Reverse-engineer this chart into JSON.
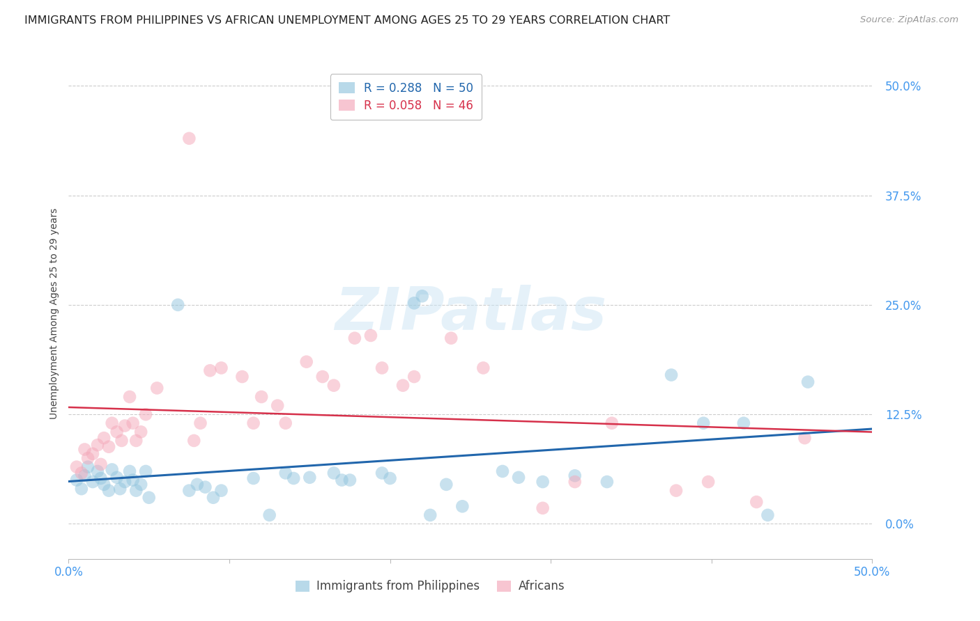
{
  "title": "IMMIGRANTS FROM PHILIPPINES VS AFRICAN UNEMPLOYMENT AMONG AGES 25 TO 29 YEARS CORRELATION CHART",
  "source": "Source: ZipAtlas.com",
  "ylabel": "Unemployment Among Ages 25 to 29 years",
  "ytick_labels": [
    "0.0%",
    "12.5%",
    "25.0%",
    "37.5%",
    "50.0%"
  ],
  "ytick_values": [
    0.0,
    0.125,
    0.25,
    0.375,
    0.5
  ],
  "xlim": [
    0.0,
    0.5
  ],
  "ylim": [
    -0.04,
    0.52
  ],
  "watermark": "ZIPatlas",
  "legend_1_label": "Immigrants from Philippines",
  "legend_2_label": "Africans",
  "r1": "0.288",
  "n1": "50",
  "r2": "0.058",
  "n2": "46",
  "color_blue": "#92c5de",
  "color_pink": "#f4a7b9",
  "color_blue_line": "#2166ac",
  "color_pink_line": "#d6304a",
  "scatter_blue": [
    [
      0.005,
      0.05
    ],
    [
      0.008,
      0.04
    ],
    [
      0.01,
      0.055
    ],
    [
      0.012,
      0.065
    ],
    [
      0.015,
      0.048
    ],
    [
      0.018,
      0.06
    ],
    [
      0.02,
      0.052
    ],
    [
      0.022,
      0.045
    ],
    [
      0.025,
      0.038
    ],
    [
      0.027,
      0.062
    ],
    [
      0.03,
      0.053
    ],
    [
      0.032,
      0.04
    ],
    [
      0.035,
      0.048
    ],
    [
      0.038,
      0.06
    ],
    [
      0.04,
      0.05
    ],
    [
      0.042,
      0.038
    ],
    [
      0.045,
      0.045
    ],
    [
      0.048,
      0.06
    ],
    [
      0.05,
      0.03
    ],
    [
      0.068,
      0.25
    ],
    [
      0.075,
      0.038
    ],
    [
      0.08,
      0.045
    ],
    [
      0.085,
      0.042
    ],
    [
      0.09,
      0.03
    ],
    [
      0.095,
      0.038
    ],
    [
      0.115,
      0.052
    ],
    [
      0.125,
      0.01
    ],
    [
      0.135,
      0.058
    ],
    [
      0.14,
      0.052
    ],
    [
      0.15,
      0.053
    ],
    [
      0.165,
      0.058
    ],
    [
      0.17,
      0.05
    ],
    [
      0.175,
      0.05
    ],
    [
      0.195,
      0.058
    ],
    [
      0.2,
      0.052
    ],
    [
      0.215,
      0.252
    ],
    [
      0.22,
      0.26
    ],
    [
      0.225,
      0.01
    ],
    [
      0.235,
      0.045
    ],
    [
      0.245,
      0.02
    ],
    [
      0.27,
      0.06
    ],
    [
      0.28,
      0.053
    ],
    [
      0.295,
      0.048
    ],
    [
      0.315,
      0.055
    ],
    [
      0.335,
      0.048
    ],
    [
      0.375,
      0.17
    ],
    [
      0.395,
      0.115
    ],
    [
      0.42,
      0.115
    ],
    [
      0.435,
      0.01
    ],
    [
      0.46,
      0.162
    ]
  ],
  "scatter_pink": [
    [
      0.005,
      0.065
    ],
    [
      0.008,
      0.058
    ],
    [
      0.01,
      0.085
    ],
    [
      0.012,
      0.075
    ],
    [
      0.015,
      0.08
    ],
    [
      0.018,
      0.09
    ],
    [
      0.02,
      0.068
    ],
    [
      0.022,
      0.098
    ],
    [
      0.025,
      0.088
    ],
    [
      0.027,
      0.115
    ],
    [
      0.03,
      0.105
    ],
    [
      0.033,
      0.095
    ],
    [
      0.035,
      0.112
    ],
    [
      0.038,
      0.145
    ],
    [
      0.04,
      0.115
    ],
    [
      0.042,
      0.095
    ],
    [
      0.045,
      0.105
    ],
    [
      0.048,
      0.125
    ],
    [
      0.055,
      0.155
    ],
    [
      0.075,
      0.44
    ],
    [
      0.078,
      0.095
    ],
    [
      0.082,
      0.115
    ],
    [
      0.088,
      0.175
    ],
    [
      0.095,
      0.178
    ],
    [
      0.108,
      0.168
    ],
    [
      0.115,
      0.115
    ],
    [
      0.12,
      0.145
    ],
    [
      0.13,
      0.135
    ],
    [
      0.135,
      0.115
    ],
    [
      0.148,
      0.185
    ],
    [
      0.158,
      0.168
    ],
    [
      0.165,
      0.158
    ],
    [
      0.178,
      0.212
    ],
    [
      0.188,
      0.215
    ],
    [
      0.195,
      0.178
    ],
    [
      0.208,
      0.158
    ],
    [
      0.215,
      0.168
    ],
    [
      0.238,
      0.212
    ],
    [
      0.258,
      0.178
    ],
    [
      0.295,
      0.018
    ],
    [
      0.315,
      0.048
    ],
    [
      0.338,
      0.115
    ],
    [
      0.378,
      0.038
    ],
    [
      0.398,
      0.048
    ],
    [
      0.428,
      0.025
    ],
    [
      0.458,
      0.098
    ]
  ],
  "background_color": "#ffffff",
  "grid_color": "#cccccc",
  "title_fontsize": 11.5,
  "axis_label_fontsize": 10,
  "tick_fontsize": 12,
  "legend_fontsize": 12,
  "source_fontsize": 9.5
}
